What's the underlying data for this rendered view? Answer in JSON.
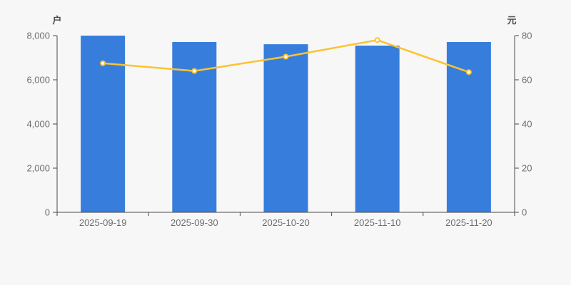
{
  "page": {
    "background": "#f7f7f7"
  },
  "chart_data": {
    "type": "bar+line",
    "categories": [
      "2025-09-19",
      "2025-09-30",
      "2025-10-20",
      "2025-11-10",
      "2025-11-20"
    ],
    "series": [
      {
        "type": "bar",
        "axis": "left",
        "color": "#377edc",
        "values": [
          8000,
          7710,
          7610,
          7550,
          7710
        ]
      },
      {
        "type": "line",
        "axis": "right",
        "color": "#fcc330",
        "marker_fill": "#ffffff",
        "values": [
          67.5,
          64,
          70.5,
          78,
          63.5
        ]
      }
    ],
    "left_axis": {
      "title": "户",
      "min": 0,
      "max": 8000,
      "ticks": [
        {
          "value": 0,
          "label": "0"
        },
        {
          "value": 2000,
          "label": "2,000"
        },
        {
          "value": 4000,
          "label": "4,000"
        },
        {
          "value": 6000,
          "label": "6,000"
        },
        {
          "value": 8000,
          "label": "8,000"
        }
      ]
    },
    "right_axis": {
      "title": "元",
      "min": 0,
      "max": 80,
      "ticks": [
        {
          "value": 0,
          "label": "0"
        },
        {
          "value": 20,
          "label": "20"
        },
        {
          "value": 40,
          "label": "40"
        },
        {
          "value": 60,
          "label": "60"
        },
        {
          "value": 80,
          "label": "80"
        }
      ]
    },
    "grid": false,
    "legend_position": "none",
    "axis_line_color": "#4a4a4a",
    "tick_text_color": "#6e6e6e"
  }
}
